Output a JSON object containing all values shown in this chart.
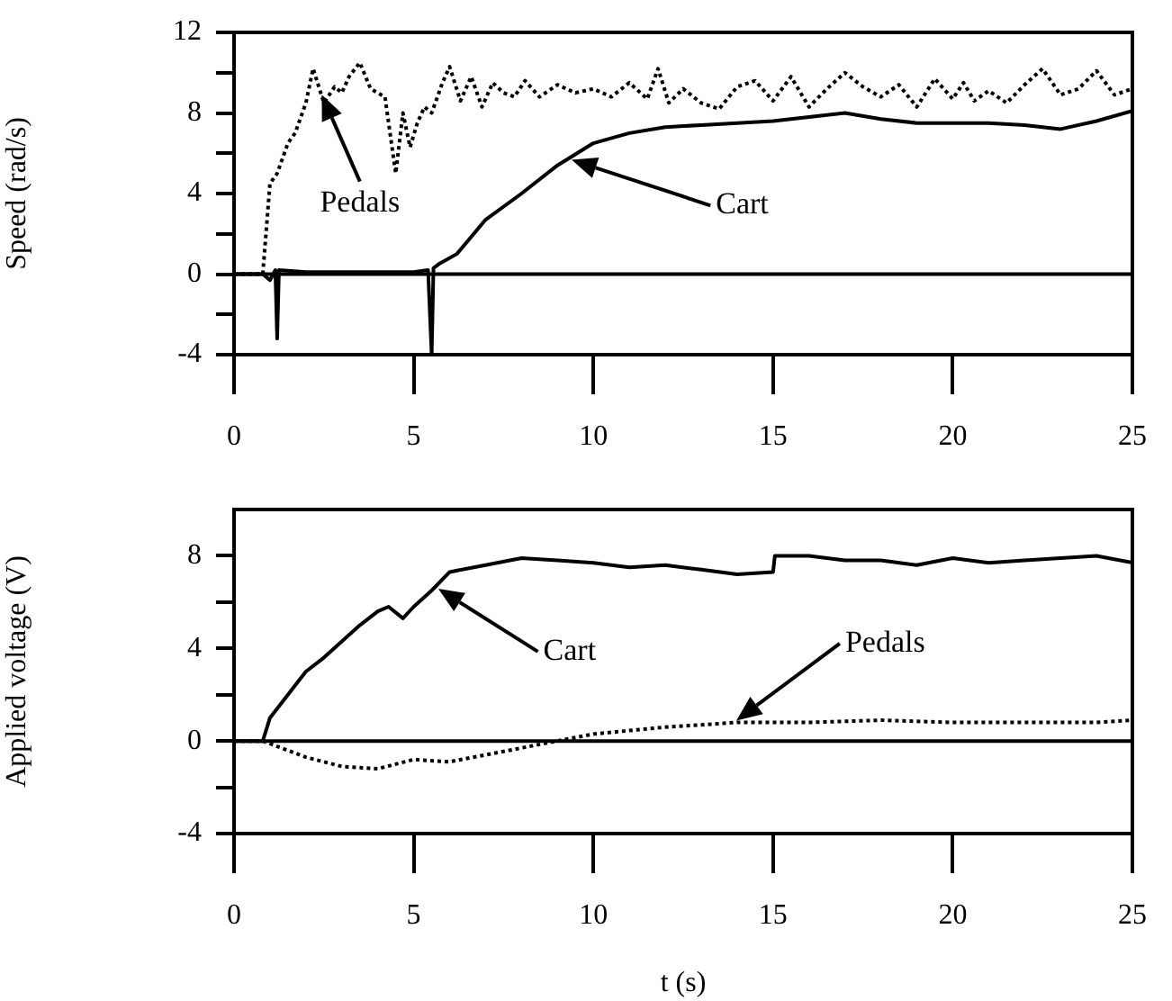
{
  "chart_data": [
    {
      "type": "line",
      "ylabel": "Speed (rad/s)",
      "xlim": [
        0,
        25
      ],
      "xticks": [
        0,
        5,
        10,
        15,
        20,
        25
      ],
      "ylim": [
        -4,
        12
      ],
      "yticks": [
        -4,
        {
          "value": -2,
          "label": null
        },
        0,
        {
          "value": 2,
          "label": null
        },
        4,
        {
          "value": 6,
          "label": null
        },
        8,
        {
          "value": 10,
          "label": null
        },
        12
      ],
      "grid": false,
      "marker": "none",
      "ref_lines": [
        {
          "axis": "y",
          "value": 0
        }
      ],
      "series": [
        {
          "name": "Pedals",
          "color": "#000000",
          "line_style": "dotted",
          "x": [
            0,
            0.8,
            1,
            1.2,
            1.5,
            1.7,
            2,
            2.2,
            2.5,
            2.8,
            3,
            3.2,
            3.5,
            3.8,
            4,
            4.2,
            4.5,
            4.7,
            4.9,
            5.1,
            5.3,
            5.5,
            5.8,
            6,
            6.3,
            6.6,
            6.9,
            7.2,
            7.5,
            7.8,
            8.1,
            8.5,
            9,
            9.5,
            10,
            10.5,
            11,
            11.5,
            11.8,
            12.1,
            12.5,
            13,
            13.5,
            14,
            14.5,
            15,
            15.5,
            16,
            16.5,
            17,
            17.5,
            18,
            18.5,
            19,
            19.5,
            20,
            20.3,
            20.6,
            21,
            21.5,
            22,
            22.5,
            23,
            23.5,
            24,
            24.5,
            25
          ],
          "values": [
            0,
            0,
            4.5,
            5,
            6.5,
            7,
            8.5,
            10.2,
            8.5,
            9.3,
            9,
            9.8,
            10.5,
            9.2,
            9,
            8.8,
            5,
            8,
            6.3,
            7.5,
            8.3,
            8,
            9.5,
            10.3,
            8.6,
            9.8,
            8.3,
            9.5,
            9,
            8.8,
            9.6,
            8.8,
            9.4,
            9,
            9.2,
            8.8,
            9.5,
            8.7,
            10.2,
            8.5,
            9.2,
            8.5,
            8.2,
            9.3,
            9.6,
            8.6,
            9.8,
            8.3,
            9.2,
            10,
            9.3,
            8.8,
            9.4,
            8.3,
            9.7,
            8.7,
            9.5,
            8.6,
            9.1,
            8.5,
            9.4,
            10.2,
            8.9,
            9.2,
            10.1,
            8.9,
            9.2
          ]
        },
        {
          "name": "Cart",
          "color": "#000000",
          "line_style": "solid",
          "x": [
            0,
            0.8,
            1,
            1.15,
            1.2,
            1.25,
            2,
            3,
            4,
            5,
            5.4,
            5.5,
            5.55,
            5.7,
            6.2,
            7,
            8,
            9,
            10,
            11,
            12,
            13,
            14,
            15,
            16,
            17,
            18,
            19,
            20,
            21,
            22,
            23,
            24,
            25
          ],
          "values": [
            0,
            0,
            -0.3,
            0.2,
            -3.2,
            0.2,
            0.1,
            0.1,
            0.1,
            0.1,
            0.2,
            -4,
            0.3,
            0.5,
            1,
            2.7,
            4,
            5.4,
            6.5,
            7,
            7.3,
            7.4,
            7.5,
            7.6,
            7.8,
            8,
            7.7,
            7.5,
            7.5,
            7.5,
            7.4,
            7.2,
            7.6,
            8.1
          ]
        }
      ]
    },
    {
      "type": "line",
      "ylabel": "Applied voltage (V)",
      "xlabel": "t (s)",
      "xlim": [
        0,
        25
      ],
      "xticks": [
        0,
        5,
        10,
        15,
        20,
        25
      ],
      "ylim": [
        -4,
        10
      ],
      "yticks": [
        -4,
        {
          "value": -2,
          "label": null
        },
        0,
        {
          "value": 2,
          "label": null
        },
        4,
        {
          "value": 6,
          "label": null
        },
        8
      ],
      "grid": false,
      "marker": "none",
      "ref_lines": [
        {
          "axis": "y",
          "value": 0
        }
      ],
      "series": [
        {
          "name": "Cart",
          "color": "#000000",
          "line_style": "solid",
          "x": [
            0,
            0.8,
            1,
            1.5,
            2,
            2.5,
            3,
            3.5,
            4,
            4.3,
            4.7,
            5,
            5.5,
            6,
            7,
            8,
            9,
            10,
            11,
            12,
            13,
            14,
            15,
            15.05,
            16,
            17,
            18,
            19,
            20,
            21,
            22,
            23,
            24,
            25
          ],
          "values": [
            0,
            0,
            1,
            2,
            3,
            3.6,
            4.3,
            5,
            5.6,
            5.8,
            5.3,
            5.8,
            6.5,
            7.3,
            7.6,
            7.9,
            7.8,
            7.7,
            7.5,
            7.6,
            7.4,
            7.2,
            7.3,
            8,
            8,
            7.8,
            7.8,
            7.6,
            7.9,
            7.7,
            7.8,
            7.9,
            8,
            7.7
          ]
        },
        {
          "name": "Pedals",
          "color": "#000000",
          "line_style": "dotted",
          "x": [
            0,
            0.8,
            2,
            3,
            4,
            5,
            6,
            7,
            8,
            9,
            10,
            11,
            12,
            13,
            14,
            16,
            18,
            20,
            22,
            24,
            25
          ],
          "values": [
            0,
            0,
            -0.7,
            -1.1,
            -1.2,
            -0.8,
            -0.9,
            -0.6,
            -0.3,
            0,
            0.3,
            0.45,
            0.6,
            0.7,
            0.8,
            0.8,
            0.9,
            0.8,
            0.8,
            0.8,
            0.9
          ]
        }
      ]
    }
  ]
}
